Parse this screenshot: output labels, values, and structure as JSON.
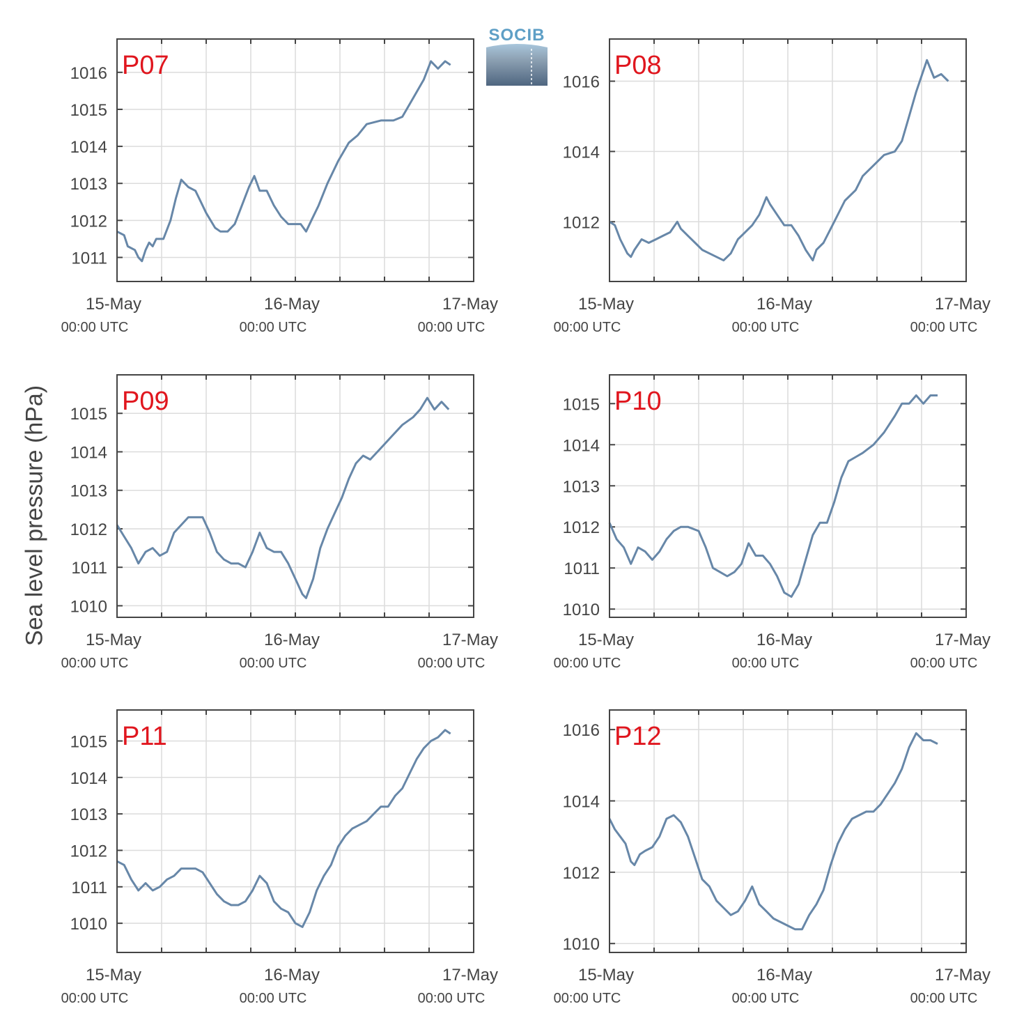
{
  "figure": {
    "ylabel": "Sea level pressure (hPa)",
    "logo_text": "SOCIB",
    "colors": {
      "line": "#6787a8",
      "label": "#e0161e",
      "axis": "#444444",
      "grid": "#dcdcdc"
    }
  },
  "chart_data": [
    {
      "type": "line",
      "name": "P07",
      "ylim": [
        1010.35,
        1016.9
      ],
      "yticks": [
        1011,
        1012,
        1013,
        1014,
        1015,
        1016
      ],
      "xticks": [
        {
          "t": 0,
          "date": "15-May",
          "time": "00:00 UTC"
        },
        {
          "t": 1,
          "date": "16-May",
          "time": "00:00 UTC"
        },
        {
          "t": 2,
          "date": "17-May",
          "time": "00:00 UTC"
        }
      ],
      "xlim_days": [
        0,
        2
      ],
      "points": [
        [
          0,
          1011.7
        ],
        [
          0.04,
          1011.6
        ],
        [
          0.06,
          1011.3
        ],
        [
          0.1,
          1011.2
        ],
        [
          0.12,
          1011.0
        ],
        [
          0.14,
          1010.9
        ],
        [
          0.16,
          1011.2
        ],
        [
          0.18,
          1011.4
        ],
        [
          0.2,
          1011.3
        ],
        [
          0.22,
          1011.5
        ],
        [
          0.26,
          1011.5
        ],
        [
          0.3,
          1012.0
        ],
        [
          0.33,
          1012.6
        ],
        [
          0.36,
          1013.1
        ],
        [
          0.4,
          1012.9
        ],
        [
          0.44,
          1012.8
        ],
        [
          0.46,
          1012.6
        ],
        [
          0.5,
          1012.2
        ],
        [
          0.55,
          1011.8
        ],
        [
          0.58,
          1011.7
        ],
        [
          0.62,
          1011.7
        ],
        [
          0.66,
          1011.9
        ],
        [
          0.7,
          1012.4
        ],
        [
          0.74,
          1012.9
        ],
        [
          0.77,
          1013.2
        ],
        [
          0.8,
          1012.8
        ],
        [
          0.84,
          1012.8
        ],
        [
          0.88,
          1012.4
        ],
        [
          0.92,
          1012.1
        ],
        [
          0.96,
          1011.9
        ],
        [
          1.0,
          1011.9
        ],
        [
          1.03,
          1011.9
        ],
        [
          1.06,
          1011.7
        ],
        [
          1.09,
          1012.0
        ],
        [
          1.13,
          1012.4
        ],
        [
          1.18,
          1013.0
        ],
        [
          1.24,
          1013.6
        ],
        [
          1.3,
          1014.1
        ],
        [
          1.35,
          1014.3
        ],
        [
          1.4,
          1014.6
        ],
        [
          1.48,
          1014.7
        ],
        [
          1.55,
          1014.7
        ],
        [
          1.6,
          1014.8
        ],
        [
          1.66,
          1015.3
        ],
        [
          1.72,
          1015.8
        ],
        [
          1.76,
          1016.3
        ],
        [
          1.8,
          1016.1
        ],
        [
          1.84,
          1016.3
        ],
        [
          1.87,
          1016.2
        ]
      ]
    },
    {
      "type": "line",
      "name": "P08",
      "ylim": [
        1010.3,
        1017.2
      ],
      "yticks": [
        1012,
        1014,
        1016
      ],
      "xticks": [
        {
          "t": 0,
          "date": "15-May",
          "time": "00:00 UTC"
        },
        {
          "t": 1,
          "date": "16-May",
          "time": "00:00 UTC"
        },
        {
          "t": 2,
          "date": "17-May",
          "time": "00:00 UTC"
        }
      ],
      "xlim_days": [
        0,
        2
      ],
      "points": [
        [
          0,
          1012.0
        ],
        [
          0.03,
          1011.9
        ],
        [
          0.06,
          1011.5
        ],
        [
          0.1,
          1011.1
        ],
        [
          0.12,
          1011.0
        ],
        [
          0.14,
          1011.2
        ],
        [
          0.18,
          1011.5
        ],
        [
          0.22,
          1011.4
        ],
        [
          0.26,
          1011.5
        ],
        [
          0.3,
          1011.6
        ],
        [
          0.34,
          1011.7
        ],
        [
          0.38,
          1012.0
        ],
        [
          0.4,
          1011.8
        ],
        [
          0.44,
          1011.6
        ],
        [
          0.48,
          1011.4
        ],
        [
          0.52,
          1011.2
        ],
        [
          0.56,
          1011.1
        ],
        [
          0.6,
          1011.0
        ],
        [
          0.64,
          1010.9
        ],
        [
          0.68,
          1011.1
        ],
        [
          0.72,
          1011.5
        ],
        [
          0.76,
          1011.7
        ],
        [
          0.8,
          1011.9
        ],
        [
          0.84,
          1012.2
        ],
        [
          0.88,
          1012.7
        ],
        [
          0.9,
          1012.5
        ],
        [
          0.94,
          1012.2
        ],
        [
          0.98,
          1011.9
        ],
        [
          1.02,
          1011.9
        ],
        [
          1.06,
          1011.6
        ],
        [
          1.1,
          1011.2
        ],
        [
          1.14,
          1010.9
        ],
        [
          1.16,
          1011.2
        ],
        [
          1.2,
          1011.4
        ],
        [
          1.26,
          1012.0
        ],
        [
          1.32,
          1012.6
        ],
        [
          1.38,
          1012.9
        ],
        [
          1.42,
          1013.3
        ],
        [
          1.48,
          1013.6
        ],
        [
          1.54,
          1013.9
        ],
        [
          1.6,
          1014.0
        ],
        [
          1.64,
          1014.3
        ],
        [
          1.68,
          1015.0
        ],
        [
          1.72,
          1015.7
        ],
        [
          1.76,
          1016.3
        ],
        [
          1.78,
          1016.6
        ],
        [
          1.82,
          1016.1
        ],
        [
          1.86,
          1016.2
        ],
        [
          1.9,
          1016.0
        ]
      ]
    },
    {
      "type": "line",
      "name": "P09",
      "ylim": [
        1009.7,
        1016.0
      ],
      "yticks": [
        1010,
        1011,
        1012,
        1013,
        1014,
        1015
      ],
      "xticks": [
        {
          "t": 0,
          "date": "15-May",
          "time": "00:00 UTC"
        },
        {
          "t": 1,
          "date": "16-May",
          "time": "00:00 UTC"
        },
        {
          "t": 2,
          "date": "17-May",
          "time": "00:00 UTC"
        }
      ],
      "xlim_days": [
        0,
        2
      ],
      "points": [
        [
          0,
          1012.1
        ],
        [
          0.04,
          1011.8
        ],
        [
          0.08,
          1011.5
        ],
        [
          0.12,
          1011.1
        ],
        [
          0.16,
          1011.4
        ],
        [
          0.2,
          1011.5
        ],
        [
          0.24,
          1011.3
        ],
        [
          0.28,
          1011.4
        ],
        [
          0.32,
          1011.9
        ],
        [
          0.36,
          1012.1
        ],
        [
          0.4,
          1012.3
        ],
        [
          0.44,
          1012.3
        ],
        [
          0.48,
          1012.3
        ],
        [
          0.52,
          1011.9
        ],
        [
          0.56,
          1011.4
        ],
        [
          0.6,
          1011.2
        ],
        [
          0.64,
          1011.1
        ],
        [
          0.68,
          1011.1
        ],
        [
          0.72,
          1011.0
        ],
        [
          0.76,
          1011.4
        ],
        [
          0.8,
          1011.9
        ],
        [
          0.84,
          1011.5
        ],
        [
          0.88,
          1011.4
        ],
        [
          0.92,
          1011.4
        ],
        [
          0.96,
          1011.1
        ],
        [
          1.0,
          1010.7
        ],
        [
          1.04,
          1010.3
        ],
        [
          1.06,
          1010.2
        ],
        [
          1.1,
          1010.7
        ],
        [
          1.14,
          1011.5
        ],
        [
          1.18,
          1012.0
        ],
        [
          1.22,
          1012.4
        ],
        [
          1.26,
          1012.8
        ],
        [
          1.3,
          1013.3
        ],
        [
          1.34,
          1013.7
        ],
        [
          1.38,
          1013.9
        ],
        [
          1.42,
          1013.8
        ],
        [
          1.48,
          1014.1
        ],
        [
          1.54,
          1014.4
        ],
        [
          1.6,
          1014.7
        ],
        [
          1.66,
          1014.9
        ],
        [
          1.7,
          1015.1
        ],
        [
          1.74,
          1015.4
        ],
        [
          1.78,
          1015.1
        ],
        [
          1.82,
          1015.3
        ],
        [
          1.86,
          1015.1
        ]
      ]
    },
    {
      "type": "line",
      "name": "P10",
      "ylim": [
        1009.8,
        1015.7
      ],
      "yticks": [
        1010,
        1011,
        1012,
        1013,
        1014,
        1015
      ],
      "xticks": [
        {
          "t": 0,
          "date": "15-May",
          "time": "00:00 UTC"
        },
        {
          "t": 1,
          "date": "16-May",
          "time": "00:00 UTC"
        },
        {
          "t": 2,
          "date": "17-May",
          "time": "00:00 UTC"
        }
      ],
      "xlim_days": [
        0,
        2
      ],
      "points": [
        [
          0,
          1012.1
        ],
        [
          0.04,
          1011.7
        ],
        [
          0.08,
          1011.5
        ],
        [
          0.12,
          1011.1
        ],
        [
          0.16,
          1011.5
        ],
        [
          0.2,
          1011.4
        ],
        [
          0.24,
          1011.2
        ],
        [
          0.28,
          1011.4
        ],
        [
          0.32,
          1011.7
        ],
        [
          0.36,
          1011.9
        ],
        [
          0.4,
          1012.0
        ],
        [
          0.44,
          1012.0
        ],
        [
          0.5,
          1011.9
        ],
        [
          0.54,
          1011.5
        ],
        [
          0.58,
          1011.0
        ],
        [
          0.62,
          1010.9
        ],
        [
          0.66,
          1010.8
        ],
        [
          0.7,
          1010.9
        ],
        [
          0.74,
          1011.1
        ],
        [
          0.78,
          1011.6
        ],
        [
          0.82,
          1011.3
        ],
        [
          0.86,
          1011.3
        ],
        [
          0.9,
          1011.1
        ],
        [
          0.94,
          1010.8
        ],
        [
          0.98,
          1010.4
        ],
        [
          1.02,
          1010.3
        ],
        [
          1.06,
          1010.6
        ],
        [
          1.1,
          1011.2
        ],
        [
          1.14,
          1011.8
        ],
        [
          1.18,
          1012.1
        ],
        [
          1.22,
          1012.1
        ],
        [
          1.26,
          1012.6
        ],
        [
          1.3,
          1013.2
        ],
        [
          1.34,
          1013.6
        ],
        [
          1.38,
          1013.7
        ],
        [
          1.42,
          1013.8
        ],
        [
          1.48,
          1014.0
        ],
        [
          1.54,
          1014.3
        ],
        [
          1.6,
          1014.7
        ],
        [
          1.64,
          1015.0
        ],
        [
          1.68,
          1015.0
        ],
        [
          1.72,
          1015.2
        ],
        [
          1.76,
          1015.0
        ],
        [
          1.8,
          1015.2
        ],
        [
          1.84,
          1015.2
        ]
      ]
    },
    {
      "type": "line",
      "name": "P11",
      "ylim": [
        1009.2,
        1015.85
      ],
      "yticks": [
        1010,
        1011,
        1012,
        1013,
        1014,
        1015
      ],
      "xticks": [
        {
          "t": 0,
          "date": "15-May",
          "time": "00:00 UTC"
        },
        {
          "t": 1,
          "date": "16-May",
          "time": "00:00 UTC"
        },
        {
          "t": 2,
          "date": "17-May",
          "time": "00:00 UTC"
        }
      ],
      "xlim_days": [
        0,
        2
      ],
      "points": [
        [
          0,
          1011.7
        ],
        [
          0.04,
          1011.6
        ],
        [
          0.08,
          1011.2
        ],
        [
          0.12,
          1010.9
        ],
        [
          0.16,
          1011.1
        ],
        [
          0.2,
          1010.9
        ],
        [
          0.24,
          1011.0
        ],
        [
          0.28,
          1011.2
        ],
        [
          0.32,
          1011.3
        ],
        [
          0.36,
          1011.5
        ],
        [
          0.4,
          1011.5
        ],
        [
          0.44,
          1011.5
        ],
        [
          0.48,
          1011.4
        ],
        [
          0.52,
          1011.1
        ],
        [
          0.56,
          1010.8
        ],
        [
          0.6,
          1010.6
        ],
        [
          0.64,
          1010.5
        ],
        [
          0.68,
          1010.5
        ],
        [
          0.72,
          1010.6
        ],
        [
          0.76,
          1010.9
        ],
        [
          0.8,
          1011.3
        ],
        [
          0.84,
          1011.1
        ],
        [
          0.88,
          1010.6
        ],
        [
          0.92,
          1010.4
        ],
        [
          0.96,
          1010.3
        ],
        [
          1.0,
          1010.0
        ],
        [
          1.04,
          1009.9
        ],
        [
          1.08,
          1010.3
        ],
        [
          1.12,
          1010.9
        ],
        [
          1.16,
          1011.3
        ],
        [
          1.2,
          1011.6
        ],
        [
          1.24,
          1012.1
        ],
        [
          1.28,
          1012.4
        ],
        [
          1.32,
          1012.6
        ],
        [
          1.36,
          1012.7
        ],
        [
          1.4,
          1012.8
        ],
        [
          1.44,
          1013.0
        ],
        [
          1.48,
          1013.2
        ],
        [
          1.52,
          1013.2
        ],
        [
          1.56,
          1013.5
        ],
        [
          1.6,
          1013.7
        ],
        [
          1.64,
          1014.1
        ],
        [
          1.68,
          1014.5
        ],
        [
          1.72,
          1014.8
        ],
        [
          1.76,
          1015.0
        ],
        [
          1.8,
          1015.1
        ],
        [
          1.84,
          1015.3
        ],
        [
          1.87,
          1015.2
        ]
      ]
    },
    {
      "type": "line",
      "name": "P12",
      "ylim": [
        1009.75,
        1016.55
      ],
      "yticks": [
        1010,
        1012,
        1014,
        1016
      ],
      "xticks": [
        {
          "t": 0,
          "date": "15-May",
          "time": "00:00 UTC"
        },
        {
          "t": 1,
          "date": "16-May",
          "time": "00:00 UTC"
        },
        {
          "t": 2,
          "date": "17-May",
          "time": "00:00 UTC"
        }
      ],
      "xlim_days": [
        0,
        2
      ],
      "points": [
        [
          0,
          1013.5
        ],
        [
          0.03,
          1013.2
        ],
        [
          0.06,
          1013.0
        ],
        [
          0.09,
          1012.8
        ],
        [
          0.12,
          1012.3
        ],
        [
          0.14,
          1012.2
        ],
        [
          0.17,
          1012.5
        ],
        [
          0.2,
          1012.6
        ],
        [
          0.24,
          1012.7
        ],
        [
          0.28,
          1013.0
        ],
        [
          0.32,
          1013.5
        ],
        [
          0.36,
          1013.6
        ],
        [
          0.4,
          1013.4
        ],
        [
          0.44,
          1013.0
        ],
        [
          0.48,
          1012.4
        ],
        [
          0.52,
          1011.8
        ],
        [
          0.56,
          1011.6
        ],
        [
          0.6,
          1011.2
        ],
        [
          0.64,
          1011.0
        ],
        [
          0.68,
          1010.8
        ],
        [
          0.72,
          1010.9
        ],
        [
          0.76,
          1011.2
        ],
        [
          0.8,
          1011.6
        ],
        [
          0.84,
          1011.1
        ],
        [
          0.88,
          1010.9
        ],
        [
          0.92,
          1010.7
        ],
        [
          0.96,
          1010.6
        ],
        [
          1.0,
          1010.5
        ],
        [
          1.04,
          1010.4
        ],
        [
          1.08,
          1010.4
        ],
        [
          1.12,
          1010.8
        ],
        [
          1.16,
          1011.1
        ],
        [
          1.2,
          1011.5
        ],
        [
          1.24,
          1012.2
        ],
        [
          1.28,
          1012.8
        ],
        [
          1.32,
          1013.2
        ],
        [
          1.36,
          1013.5
        ],
        [
          1.4,
          1013.6
        ],
        [
          1.44,
          1013.7
        ],
        [
          1.48,
          1013.7
        ],
        [
          1.52,
          1013.9
        ],
        [
          1.56,
          1014.2
        ],
        [
          1.6,
          1014.5
        ],
        [
          1.64,
          1014.9
        ],
        [
          1.68,
          1015.5
        ],
        [
          1.72,
          1015.9
        ],
        [
          1.76,
          1015.7
        ],
        [
          1.8,
          1015.7
        ],
        [
          1.84,
          1015.6
        ]
      ]
    }
  ]
}
